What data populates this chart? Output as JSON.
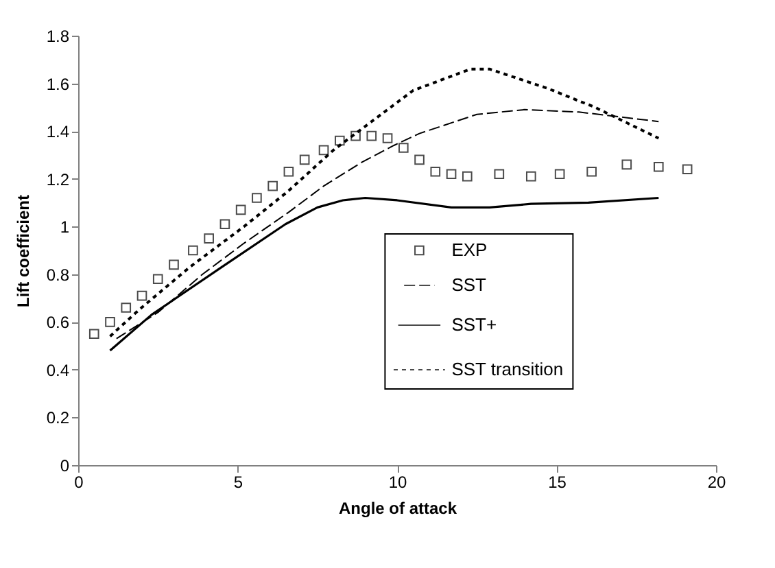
{
  "chart_data": {
    "type": "line",
    "xlabel": "Angle of attack",
    "ylabel": "Lift coefficient",
    "xlim": [
      0,
      20
    ],
    "xticks": [
      0,
      5,
      10,
      15,
      20
    ],
    "ylim": [
      0,
      1.8
    ],
    "yticks": [
      0,
      0.2,
      0.4,
      0.6,
      0.8,
      1,
      1.2,
      1.4,
      1.6,
      1.8
    ],
    "grid": false,
    "legend": "right",
    "series": [
      {
        "name": "EXP",
        "type": "scatter",
        "marker": "square",
        "color": "#000000",
        "x": [
          0.5,
          1,
          1.5,
          2,
          2.5,
          3,
          3.6,
          4.1,
          4.6,
          5.1,
          5.6,
          6.1,
          6.6,
          7.1,
          7.7,
          8.2,
          8.7,
          9.2,
          9.7,
          10.2,
          10.7,
          11.2,
          11.7,
          12.2,
          13.2,
          14.2,
          15.1,
          16.1,
          17.2,
          18.2,
          19.1
        ],
        "values": [
          0.55,
          0.6,
          0.66,
          0.71,
          0.78,
          0.84,
          0.9,
          0.95,
          1.01,
          1.07,
          1.12,
          1.17,
          1.23,
          1.28,
          1.32,
          1.36,
          1.38,
          1.38,
          1.37,
          1.33,
          1.28,
          1.23,
          1.22,
          1.21,
          1.22,
          1.21,
          1.22,
          1.23,
          1.26,
          1.25,
          1.24
        ]
      },
      {
        "name": "SST",
        "line_style": "dashed",
        "marker": "none",
        "color": "#000000",
        "x": [
          1.2,
          2.5,
          3.9,
          5.2,
          6.6,
          7.7,
          8.9,
          9.9,
          10.7,
          12.5,
          14,
          15.7,
          18.2
        ],
        "values": [
          0.53,
          0.64,
          0.8,
          0.93,
          1.06,
          1.17,
          1.27,
          1.34,
          1.39,
          1.47,
          1.49,
          1.48,
          1.44
        ]
      },
      {
        "name": "SST+",
        "line_style": "solid",
        "marker": "none",
        "color": "#000000",
        "x": [
          1,
          2.3,
          4.5,
          6.5,
          7.5,
          8.3,
          9,
          10,
          11.7,
          12.9,
          14.2,
          16,
          18.2
        ],
        "values": [
          0.48,
          0.63,
          0.83,
          1.01,
          1.08,
          1.11,
          1.12,
          1.11,
          1.08,
          1.08,
          1.095,
          1.1,
          1.12
        ]
      },
      {
        "name": "SST transition",
        "line_style": "dotted",
        "marker": "none",
        "color": "#000000",
        "x": [
          1,
          1.9,
          3.5,
          5.2,
          6.6,
          8,
          9.7,
          10.5,
          12.3,
          12.9,
          14.7,
          16.2,
          18.2
        ],
        "values": [
          0.54,
          0.65,
          0.83,
          1,
          1.15,
          1.32,
          1.49,
          1.57,
          1.66,
          1.66,
          1.58,
          1.5,
          1.37
        ]
      }
    ]
  }
}
